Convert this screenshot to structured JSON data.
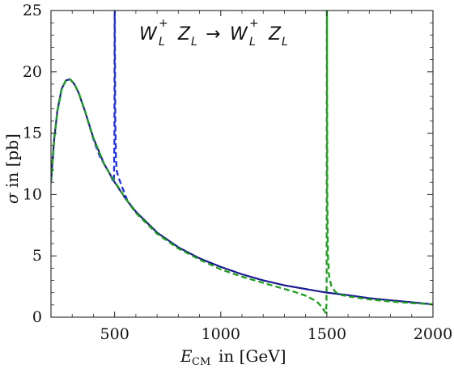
{
  "chart_data": {
    "type": "line",
    "title": "",
    "annotation": {
      "w": "W",
      "w_sub": "L",
      "w_sup": "+",
      "z": "Z",
      "z_sub": "L",
      "arrow": "→"
    },
    "xlabel": {
      "symbol": "E",
      "sub": "CM",
      "text": "in [GeV]"
    },
    "ylabel": {
      "symbol": "σ",
      "text": "in [pb]"
    },
    "xlim": [
      200,
      2000
    ],
    "ylim": [
      0,
      25
    ],
    "xticks": [
      500,
      1000,
      1500,
      2000
    ],
    "yticks": [
      0,
      5,
      10,
      15,
      20,
      25
    ],
    "grid": false,
    "colors": {
      "black": "#000000",
      "navy": "#1a1a99",
      "blue": "#1f2ef0",
      "green": "#1aa01a"
    },
    "series": [
      {
        "style": "solid",
        "color_key": "black",
        "x": [
          200,
          215,
          230,
          250,
          270,
          290,
          310,
          330,
          360,
          400,
          450,
          500,
          550,
          600,
          700,
          800,
          900,
          1000,
          1100,
          1200,
          1300,
          1400,
          1500,
          1600,
          1700,
          1800,
          1900,
          2000
        ],
        "y": [
          11.0,
          14.5,
          16.8,
          18.6,
          19.3,
          19.4,
          19.0,
          18.3,
          16.8,
          14.6,
          12.5,
          11.0,
          9.7,
          8.6,
          6.9,
          5.7,
          4.8,
          4.1,
          3.5,
          3.0,
          2.6,
          2.3,
          2.0,
          1.8,
          1.55,
          1.38,
          1.22,
          1.05
        ]
      },
      {
        "style": "solid",
        "color_key": "navy",
        "x": [
          200,
          215,
          230,
          250,
          270,
          290,
          310,
          330,
          360,
          400,
          450,
          500,
          550,
          600,
          700,
          800,
          900,
          1000,
          1100,
          1200,
          1300,
          1400,
          1500,
          1600,
          1700,
          1800,
          1900,
          2000
        ],
        "y": [
          11.0,
          14.5,
          16.8,
          18.6,
          19.3,
          19.4,
          19.0,
          18.3,
          16.8,
          14.6,
          12.5,
          11.0,
          9.7,
          8.6,
          6.9,
          5.7,
          4.8,
          4.1,
          3.5,
          3.0,
          2.6,
          2.3,
          2.0,
          1.8,
          1.55,
          1.38,
          1.22,
          1.05
        ]
      },
      {
        "style": "dashed",
        "color_key": "blue",
        "x": [
          200,
          215,
          230,
          250,
          270,
          290,
          310,
          330,
          360,
          400,
          430,
          460,
          480,
          490,
          495,
          497,
          499,
          500,
          500.5,
          501,
          503,
          506,
          510,
          520,
          540,
          560
        ],
        "y": [
          11.0,
          14.5,
          16.8,
          18.6,
          19.3,
          19.4,
          19.0,
          18.3,
          16.8,
          14.5,
          13.1,
          12.2,
          11.6,
          11.2,
          11.0,
          11.5,
          14.5,
          25.0,
          25.0,
          22.0,
          16.0,
          13.0,
          11.9,
          11.3,
          10.4,
          9.5
        ]
      },
      {
        "style": "dashed",
        "color_key": "green",
        "x": [
          200,
          215,
          230,
          250,
          270,
          290,
          310,
          330,
          360,
          400,
          450,
          490,
          500,
          510,
          550,
          600,
          700,
          800,
          900,
          1000,
          1100,
          1200,
          1300,
          1350,
          1400,
          1440,
          1460,
          1475,
          1485,
          1492,
          1496,
          1498,
          1499,
          1500,
          1500.5,
          1501,
          1502,
          1505,
          1510,
          1520,
          1540,
          1570,
          1600,
          1700,
          1800,
          1900,
          2000
        ],
        "y": [
          11.0,
          14.5,
          16.8,
          18.6,
          19.3,
          19.4,
          19.0,
          18.3,
          16.8,
          14.6,
          12.5,
          11.3,
          11.0,
          10.8,
          9.7,
          8.5,
          6.8,
          5.6,
          4.7,
          3.9,
          3.3,
          2.8,
          2.3,
          2.05,
          1.75,
          1.4,
          1.15,
          0.85,
          0.6,
          0.4,
          0.35,
          1.0,
          3.0,
          25.0,
          25.0,
          20.0,
          10.0,
          5.0,
          3.4,
          2.6,
          2.05,
          1.8,
          1.7,
          1.45,
          1.28,
          1.15,
          1.05
        ]
      }
    ]
  }
}
